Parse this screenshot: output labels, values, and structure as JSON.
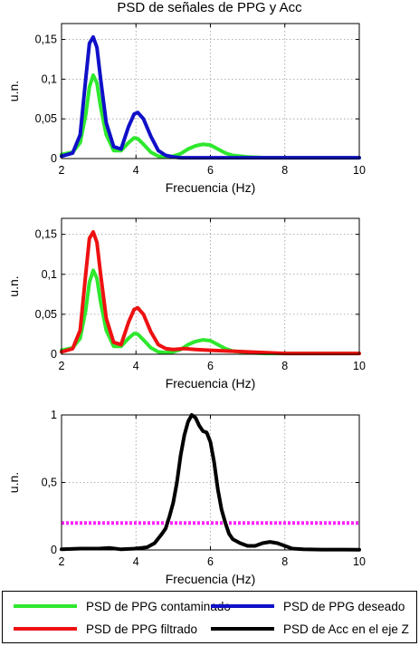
{
  "title": "PSD de señales de PPG y Acc",
  "colors": {
    "contaminado": "#2ee82e",
    "deseado": "#1010c8",
    "filtrado": "#ee1111",
    "acc": "#000000",
    "threshold": "#ff22ff",
    "grid": "#9a9a9a"
  },
  "legend": [
    {
      "label": "PSD de PPG contaminado",
      "color": "#2ee82e"
    },
    {
      "label": "PSD de PPG deseado",
      "color": "#1010c8"
    },
    {
      "label": "PSD de PPG filtrado",
      "color": "#ee1111"
    },
    {
      "label": "PSD de Acc en el eje Z",
      "color": "#000000"
    }
  ],
  "chart_data": [
    {
      "type": "line",
      "xlabel": "Frecuencia (Hz)",
      "ylabel": "u.n.",
      "xlim": [
        2,
        10
      ],
      "ylim": [
        0,
        0.17
      ],
      "xticks": [
        2,
        4,
        6,
        8,
        10
      ],
      "xtick_labels": [
        "2",
        "4",
        "6",
        "8",
        "10"
      ],
      "yticks": [
        0,
        0.05,
        0.1,
        0.15
      ],
      "ytick_labels": [
        "0",
        "0,05",
        "0,1",
        "0,15"
      ],
      "grid": true,
      "series": [
        {
          "name": "PSD de PPG contaminado",
          "color": "#2ee82e",
          "x": [
            2,
            2.3,
            2.5,
            2.65,
            2.75,
            2.85,
            2.95,
            3.05,
            3.2,
            3.4,
            3.6,
            3.8,
            3.95,
            4.05,
            4.2,
            4.4,
            4.6,
            4.8,
            5,
            5.2,
            5.4,
            5.6,
            5.8,
            6,
            6.2,
            6.4,
            6.6,
            7,
            7.5,
            8,
            9,
            10
          ],
          "y": [
            0.005,
            0.008,
            0.02,
            0.055,
            0.09,
            0.105,
            0.095,
            0.065,
            0.03,
            0.01,
            0.01,
            0.02,
            0.026,
            0.025,
            0.018,
            0.008,
            0.003,
            0.002,
            0.003,
            0.006,
            0.012,
            0.016,
            0.018,
            0.017,
            0.012,
            0.007,
            0.004,
            0.002,
            0.001,
            0.001,
            0.001,
            0.001
          ]
        },
        {
          "name": "PSD de PPG deseado",
          "color": "#1010c8",
          "x": [
            2,
            2.3,
            2.5,
            2.65,
            2.75,
            2.85,
            2.95,
            3.05,
            3.2,
            3.4,
            3.6,
            3.8,
            3.95,
            4.05,
            4.2,
            4.4,
            4.6,
            4.8,
            5,
            5.2,
            5.5,
            6,
            6.5,
            7,
            8,
            9,
            10
          ],
          "y": [
            0.003,
            0.007,
            0.03,
            0.1,
            0.145,
            0.153,
            0.14,
            0.1,
            0.045,
            0.015,
            0.012,
            0.04,
            0.056,
            0.058,
            0.05,
            0.028,
            0.01,
            0.004,
            0.002,
            0.001,
            0.001,
            0.001,
            0.001,
            0.001,
            0.001,
            0.001,
            0.001
          ]
        }
      ]
    },
    {
      "type": "line",
      "xlabel": "Frecuencia (Hz)",
      "ylabel": "u.n.",
      "xlim": [
        2,
        10
      ],
      "ylim": [
        0,
        0.17
      ],
      "xticks": [
        2,
        4,
        6,
        8,
        10
      ],
      "xtick_labels": [
        "2",
        "4",
        "6",
        "8",
        "10"
      ],
      "yticks": [
        0,
        0.05,
        0.1,
        0.15
      ],
      "ytick_labels": [
        "0",
        "0,05",
        "0,1",
        "0,15"
      ],
      "grid": true,
      "series": [
        {
          "name": "PSD de PPG contaminado",
          "color": "#2ee82e",
          "x": [
            2,
            2.3,
            2.5,
            2.65,
            2.75,
            2.85,
            2.95,
            3.05,
            3.2,
            3.4,
            3.6,
            3.8,
            3.95,
            4.05,
            4.2,
            4.4,
            4.6,
            4.8,
            5,
            5.2,
            5.4,
            5.6,
            5.8,
            6,
            6.2,
            6.4,
            6.6,
            7,
            7.5,
            8,
            9,
            10
          ],
          "y": [
            0.005,
            0.008,
            0.02,
            0.055,
            0.09,
            0.105,
            0.095,
            0.065,
            0.03,
            0.01,
            0.01,
            0.02,
            0.026,
            0.025,
            0.018,
            0.008,
            0.003,
            0.002,
            0.003,
            0.006,
            0.012,
            0.016,
            0.018,
            0.017,
            0.012,
            0.007,
            0.004,
            0.002,
            0.001,
            0.001,
            0.001,
            0.001
          ]
        },
        {
          "name": "PSD de PPG filtrado",
          "color": "#ee1111",
          "x": [
            2,
            2.3,
            2.5,
            2.65,
            2.75,
            2.85,
            2.95,
            3.05,
            3.2,
            3.4,
            3.6,
            3.8,
            3.95,
            4.05,
            4.2,
            4.4,
            4.6,
            4.8,
            5,
            5.3,
            5.6,
            6,
            6.5,
            7,
            7.5,
            8,
            9,
            10
          ],
          "y": [
            0.003,
            0.007,
            0.03,
            0.1,
            0.145,
            0.153,
            0.14,
            0.1,
            0.045,
            0.015,
            0.012,
            0.04,
            0.056,
            0.058,
            0.05,
            0.028,
            0.012,
            0.007,
            0.006,
            0.007,
            0.006,
            0.005,
            0.004,
            0.003,
            0.002,
            0.001,
            0.001,
            0.001
          ]
        }
      ]
    },
    {
      "type": "line",
      "xlabel": "Frecuencia (Hz)",
      "ylabel": "u.n.",
      "xlim": [
        2,
        10
      ],
      "ylim": [
        0,
        1
      ],
      "xticks": [
        2,
        4,
        6,
        8,
        10
      ],
      "xtick_labels": [
        "2",
        "4",
        "6",
        "8",
        "10"
      ],
      "yticks": [
        0,
        0.5,
        1
      ],
      "ytick_labels": [
        "0",
        "0,5",
        "1"
      ],
      "grid": true,
      "threshold": {
        "y": 0.2,
        "color": "#ff22ff",
        "style": "dotted"
      },
      "series": [
        {
          "name": "PSD de Acc en el eje Z",
          "color": "#000000",
          "x": [
            2,
            2.5,
            3,
            3.3,
            3.6,
            4,
            4.3,
            4.5,
            4.7,
            4.8,
            4.9,
            5,
            5.1,
            5.2,
            5.3,
            5.4,
            5.5,
            5.6,
            5.7,
            5.8,
            5.9,
            6,
            6.1,
            6.2,
            6.3,
            6.4,
            6.5,
            6.6,
            6.8,
            7,
            7.2,
            7.4,
            7.6,
            7.8,
            8,
            8.2,
            8.5,
            9,
            10
          ],
          "y": [
            0.005,
            0.01,
            0.01,
            0.015,
            0.005,
            0.01,
            0.02,
            0.05,
            0.12,
            0.16,
            0.25,
            0.35,
            0.5,
            0.7,
            0.85,
            0.95,
            1.0,
            0.98,
            0.92,
            0.88,
            0.87,
            0.8,
            0.65,
            0.45,
            0.3,
            0.2,
            0.12,
            0.08,
            0.05,
            0.03,
            0.03,
            0.05,
            0.06,
            0.05,
            0.03,
            0.01,
            0.005,
            0.003,
            0.002
          ]
        }
      ]
    }
  ]
}
